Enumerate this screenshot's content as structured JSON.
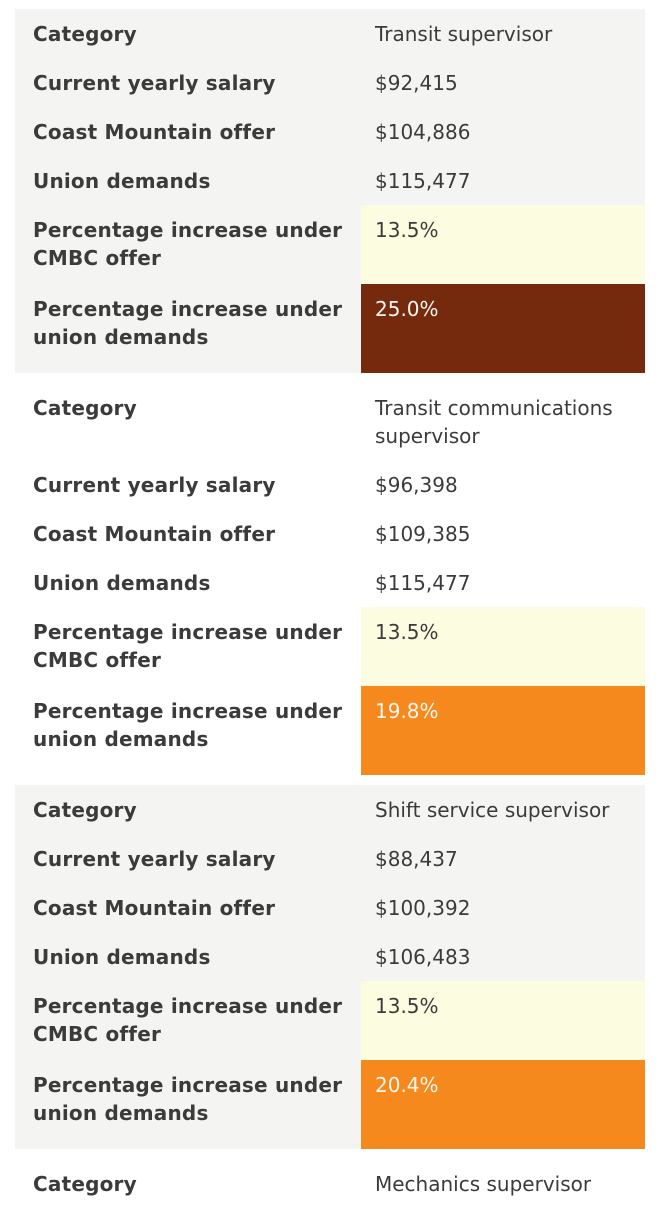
{
  "colors": {
    "card_alt_bg": "#f4f4f2",
    "pct_offer_bg": "#fcfce1",
    "pct_union_dark_bg": "#752a0e",
    "pct_union_orange_bg": "#f5891d",
    "text": "#3b3b3b",
    "light_text": "#fbf6ee"
  },
  "labels": {
    "category": "Category",
    "current_salary": "Current yearly salary",
    "cm_offer": "Coast Mountain offer",
    "union_demands": "Union demands",
    "pct_offer": "Percentage increase under CMBC offer",
    "pct_union": "Percentage increase under union demands"
  },
  "records": [
    {
      "category": "Transit supervisor",
      "current_salary": "$92,415",
      "cm_offer": "$104,886",
      "union_demands": "$115,477",
      "pct_offer": "13.5%",
      "pct_union": "25.0%",
      "pct_offer_style": "background:#fcfce1;color:#3b3b3b",
      "pct_union_style": "background:#752a0e;color:#fbf6ee"
    },
    {
      "category": "Transit communications supervisor",
      "current_salary": "$96,398",
      "cm_offer": "$109,385",
      "union_demands": "$115,477",
      "pct_offer": "13.5%",
      "pct_union": "19.8%",
      "pct_offer_style": "background:#fcfce1;color:#3b3b3b",
      "pct_union_style": "background:#f5891d;color:#fbf6ee"
    },
    {
      "category": "Shift service supervisor",
      "current_salary": "$88,437",
      "cm_offer": "$100,392",
      "union_demands": "$106,483",
      "pct_offer": "13.5%",
      "pct_union": "20.4%",
      "pct_offer_style": "background:#fcfce1;color:#3b3b3b",
      "pct_union_style": "background:#f5891d;color:#fbf6ee"
    },
    {
      "category": "Mechanics supervisor"
    }
  ],
  "chart_data": {
    "type": "table",
    "columns": [
      "Category",
      "Current yearly salary",
      "Coast Mountain offer",
      "Union demands",
      "Percentage increase under CMBC offer",
      "Percentage increase under union demands"
    ],
    "rows": [
      [
        "Transit supervisor",
        "$92,415",
        "$104,886",
        "$115,477",
        "13.5%",
        "25.0%"
      ],
      [
        "Transit communications supervisor",
        "$96,398",
        "$109,385",
        "$115,477",
        "13.5%",
        "19.8%"
      ],
      [
        "Shift service supervisor",
        "$88,437",
        "$100,392",
        "$106,483",
        "13.5%",
        "20.4%"
      ],
      [
        "Mechanics supervisor",
        "",
        "",
        "",
        "",
        ""
      ]
    ],
    "layout": "stacked mobile cards, one card per row record",
    "heatmap": {
      "pct_offer_cells": "#fcfce1",
      "pct_union_cells": {
        "25.0%": "#752a0e",
        "19.8%": "#f5891d",
        "20.4%": "#f5891d"
      }
    }
  }
}
